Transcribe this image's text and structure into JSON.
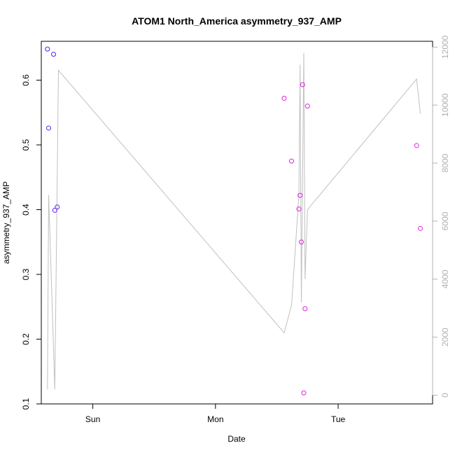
{
  "chart_data": {
    "type": "scatter",
    "title": "ATOM1 North_America asymmetry_937_AMP",
    "xlabel": "Date",
    "ylabel": "asymmetry_937_AMP",
    "x_ticks": [
      {
        "label": "Sun",
        "day": 1.0
      },
      {
        "label": "Mon",
        "day": 2.0
      },
      {
        "label": "Tue",
        "day": 3.0
      }
    ],
    "xlim": [
      0.58,
      3.77
    ],
    "ylim": [
      0.1,
      0.66
    ],
    "y_ticks": [
      0.1,
      0.2,
      0.3,
      0.4,
      0.5,
      0.6
    ],
    "y2lim": [
      -300,
      12200
    ],
    "y2_ticks": [
      0,
      2000,
      4000,
      6000,
      8000,
      10000,
      12000
    ],
    "points": [
      {
        "day": 0.63,
        "y": 0.648,
        "color": "#5a1aff"
      },
      {
        "day": 0.64,
        "y": 0.526,
        "color": "#5a1aff"
      },
      {
        "day": 0.68,
        "y": 0.64,
        "color": "#5a1aff"
      },
      {
        "day": 0.69,
        "y": 0.399,
        "color": "#5a1aff"
      },
      {
        "day": 0.71,
        "y": 0.404,
        "color": "#5a1aff"
      },
      {
        "day": 2.56,
        "y": 0.572,
        "color": "#e020e0"
      },
      {
        "day": 2.62,
        "y": 0.475,
        "color": "#e020e0"
      },
      {
        "day": 2.68,
        "y": 0.401,
        "color": "#e020e0"
      },
      {
        "day": 2.69,
        "y": 0.422,
        "color": "#e020e0"
      },
      {
        "day": 2.7,
        "y": 0.35,
        "color": "#e020e0"
      },
      {
        "day": 2.71,
        "y": 0.593,
        "color": "#e020e0"
      },
      {
        "day": 2.72,
        "y": 0.117,
        "color": "#e020e0"
      },
      {
        "day": 2.73,
        "y": 0.247,
        "color": "#e020e0"
      },
      {
        "day": 2.75,
        "y": 0.56,
        "color": "#e020e0"
      },
      {
        "day": 3.64,
        "y": 0.499,
        "color": "#e020e0"
      },
      {
        "day": 3.67,
        "y": 0.371,
        "color": "#e020e0"
      }
    ],
    "line_series": {
      "axis": "right",
      "color": "#c0c0c0",
      "points": [
        {
          "day": 0.63,
          "y": 200
        },
        {
          "day": 0.64,
          "y": 6900
        },
        {
          "day": 0.69,
          "y": 200
        },
        {
          "day": 0.72,
          "y": 11200
        },
        {
          "day": 2.56,
          "y": 2150
        },
        {
          "day": 2.62,
          "y": 3100
        },
        {
          "day": 2.68,
          "y": 6900
        },
        {
          "day": 2.69,
          "y": 11400
        },
        {
          "day": 2.7,
          "y": 3200
        },
        {
          "day": 2.72,
          "y": 11800
        },
        {
          "day": 2.73,
          "y": 4000
        },
        {
          "day": 2.75,
          "y": 6400
        },
        {
          "day": 3.64,
          "y": 10900
        },
        {
          "day": 3.67,
          "y": 9700
        }
      ]
    }
  }
}
